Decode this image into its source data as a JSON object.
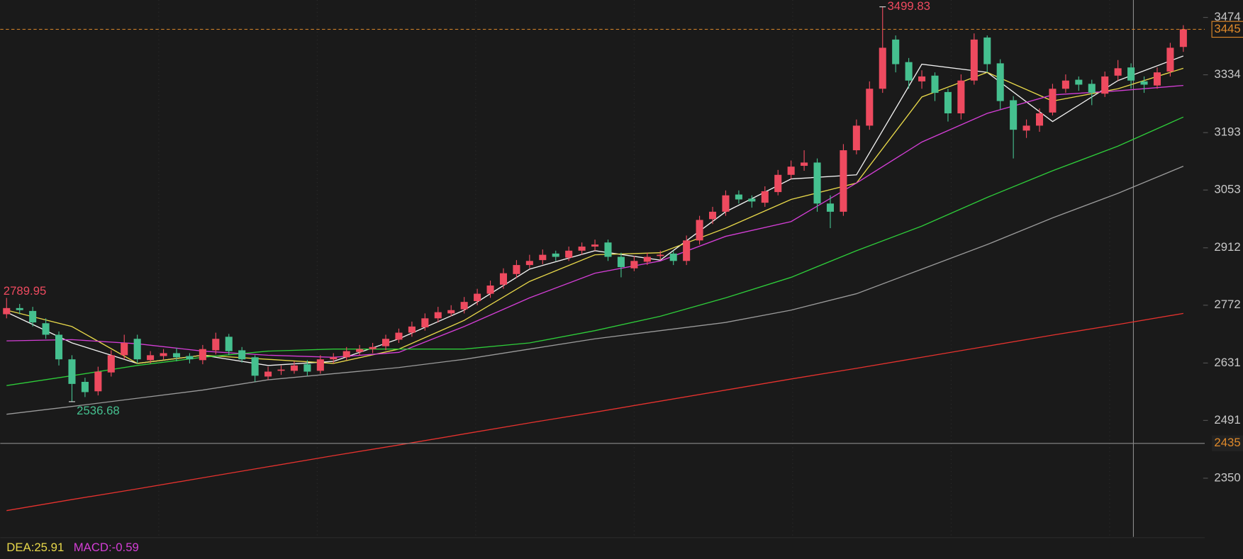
{
  "chart_data": {
    "type": "candlestick",
    "open": [
      2750,
      2765,
      2758,
      2728,
      2700,
      2640,
      2585,
      2562,
      2608,
      2650,
      2690,
      2638,
      2648,
      2655,
      2648,
      2638,
      2662,
      2695,
      2662,
      2645,
      2598,
      2612,
      2612,
      2628,
      2612,
      2640,
      2645,
      2658,
      2665,
      2672,
      2688,
      2705,
      2718,
      2740,
      2752,
      2762,
      2782,
      2800,
      2822,
      2848,
      2870,
      2882,
      2898,
      2888,
      2905,
      2915,
      2925,
      2890,
      2862,
      2878,
      2892,
      2898,
      2880,
      2930,
      2982,
      3000,
      3042,
      3032,
      3022,
      3048,
      3090,
      3112,
      3120,
      3020,
      3000,
      3150,
      3210,
      3300,
      3420,
      3365,
      3318,
      3332,
      3292,
      3240,
      3320,
      3425,
      3362,
      3272,
      3198,
      3210,
      3242,
      3300,
      3322,
      3312,
      3288,
      3332,
      3352,
      3318,
      3308,
      3342,
      3402
    ],
    "high": [
      2789.95,
      2775,
      2768,
      2740,
      2708,
      2650,
      2595,
      2622,
      2662,
      2700,
      2700,
      2660,
      2665,
      2668,
      2655,
      2675,
      2705,
      2702,
      2670,
      2650,
      2622,
      2625,
      2635,
      2638,
      2650,
      2655,
      2670,
      2675,
      2680,
      2700,
      2715,
      2732,
      2752,
      2768,
      2772,
      2792,
      2812,
      2832,
      2862,
      2882,
      2895,
      2908,
      2905,
      2915,
      2925,
      2932,
      2932,
      2900,
      2892,
      2900,
      2905,
      2905,
      2942,
      2990,
      3012,
      3052,
      3052,
      3040,
      3062,
      3102,
      3125,
      3150,
      3130,
      3040,
      3165,
      3225,
      3318,
      3499.83,
      3430,
      3375,
      3345,
      3340,
      3300,
      3335,
      3435,
      3430,
      3372,
      3282,
      3225,
      3252,
      3312,
      3335,
      3330,
      3322,
      3342,
      3370,
      3362,
      3330,
      3352,
      3412,
      3455
    ],
    "low": [
      2740,
      2750,
      2720,
      2690,
      2625,
      2536.68,
      2548,
      2552,
      2598,
      2640,
      2630,
      2630,
      2640,
      2635,
      2630,
      2628,
      2652,
      2650,
      2632,
      2585,
      2590,
      2602,
      2605,
      2600,
      2605,
      2630,
      2638,
      2650,
      2655,
      2662,
      2680,
      2695,
      2710,
      2730,
      2745,
      2752,
      2772,
      2790,
      2812,
      2838,
      2862,
      2872,
      2880,
      2880,
      2895,
      2905,
      2880,
      2840,
      2855,
      2870,
      2882,
      2870,
      2870,
      2920,
      2970,
      2990,
      3020,
      3010,
      3012,
      3040,
      3080,
      3100,
      3000,
      2960,
      2990,
      3140,
      3200,
      3290,
      3340,
      3300,
      3300,
      3270,
      3220,
      3225,
      3310,
      3340,
      3250,
      3130,
      3180,
      3195,
      3235,
      3290,
      3295,
      3260,
      3280,
      3320,
      3300,
      3290,
      3300,
      3330,
      3390
    ],
    "close": [
      2765,
      2760,
      2730,
      2700,
      2640,
      2580,
      2560,
      2610,
      2650,
      2680,
      2640,
      2650,
      2655,
      2645,
      2640,
      2665,
      2690,
      2660,
      2640,
      2600,
      2610,
      2615,
      2625,
      2610,
      2640,
      2645,
      2660,
      2665,
      2670,
      2690,
      2705,
      2720,
      2740,
      2755,
      2760,
      2780,
      2800,
      2820,
      2850,
      2870,
      2880,
      2895,
      2890,
      2905,
      2915,
      2920,
      2890,
      2865,
      2880,
      2890,
      2895,
      2880,
      2930,
      2980,
      3000,
      3040,
      3030,
      3025,
      3050,
      3090,
      3110,
      3120,
      3020,
      3000,
      3150,
      3210,
      3300,
      3400,
      3360,
      3320,
      3330,
      3290,
      3240,
      3320,
      3420,
      3360,
      3270,
      3200,
      3210,
      3240,
      3300,
      3320,
      3310,
      3290,
      3330,
      3350,
      3320,
      3310,
      3340,
      3400,
      3445
    ],
    "up_color": "#ee4a5f",
    "down_color": "#45c08f",
    "ylim": [
      2207,
      3516.5
    ],
    "yticks": [
      3474,
      3334,
      3193,
      3053,
      2912,
      2772,
      2631,
      2491,
      2350
    ],
    "ma_x": [
      0,
      5,
      10,
      15,
      20,
      25,
      30,
      35,
      40,
      45,
      50,
      55,
      60,
      65,
      70,
      75,
      80,
      85,
      90
    ],
    "moving_averages": [
      {
        "color": "#f2f2f2",
        "values": [
          2755,
          2680,
          2630,
          2650,
          2625,
          2635,
          2690,
          2760,
          2860,
          2905,
          2882,
          3000,
          3080,
          3090,
          3360,
          3340,
          3220,
          3320,
          3380
        ]
      },
      {
        "color": "#e8d84a",
        "values": [
          2760,
          2720,
          2630,
          2650,
          2640,
          2630,
          2665,
          2735,
          2830,
          2895,
          2900,
          2960,
          3030,
          3070,
          3280,
          3340,
          3270,
          3300,
          3350
        ]
      },
      {
        "color": "#d43ed6",
        "values": [
          2685,
          2688,
          2678,
          2660,
          2650,
          2645,
          2657,
          2720,
          2790,
          2850,
          2880,
          2940,
          2976,
          3070,
          3170,
          3240,
          3285,
          3295,
          3308
        ]
      },
      {
        "color": "#2ecc3a",
        "values": [
          2576,
          2600,
          2625,
          2645,
          2660,
          2665,
          2665,
          2665,
          2680,
          2710,
          2745,
          2790,
          2840,
          2905,
          2965,
          3035,
          3100,
          3160,
          3231
        ]
      },
      {
        "color": "#9a9a9a",
        "values": [
          2506,
          2525,
          2545,
          2565,
          2590,
          2605,
          2620,
          2640,
          2665,
          2690,
          2710,
          2730,
          2760,
          2800,
          2860,
          2920,
          2985,
          3045,
          3111
        ]
      },
      {
        "color": "#e5322e",
        "values": [
          2271,
          2298,
          2324,
          2351,
          2378,
          2405,
          2431,
          2458,
          2485,
          2511,
          2538,
          2565,
          2592,
          2618,
          2645,
          2672,
          2699,
          2725,
          2752
        ]
      }
    ],
    "crosshair_value": 2435,
    "indicators": [
      {
        "text": "DEA:25.91",
        "color": "#e8d84a"
      },
      {
        "text": "MACD:-0.59",
        "color": "#d43ed6"
      }
    ]
  }
}
